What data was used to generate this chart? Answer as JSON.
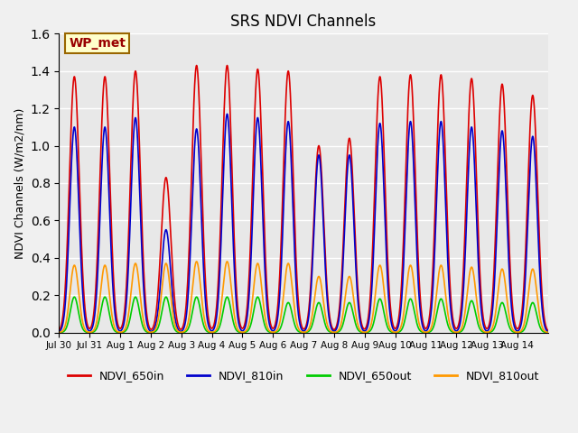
{
  "title": "SRS NDVI Channels",
  "ylabel": "NDVI Channels (W/m2/nm)",
  "annotation": "WP_met",
  "ylim": [
    0.0,
    1.6
  ],
  "background_color": "#e8e8e8",
  "fig_color": "#f0f0f0",
  "grid_color": "white",
  "series": {
    "NDVI_650in": {
      "color": "#dd0000"
    },
    "NDVI_810in": {
      "color": "#0000cc"
    },
    "NDVI_650out": {
      "color": "#00cc00"
    },
    "NDVI_810out": {
      "color": "#ff9900"
    }
  },
  "x_tick_labels": [
    "Jul 30",
    "Jul 31",
    "Aug 1",
    "Aug 2",
    "Aug 3",
    "Aug 4",
    "Aug 5",
    "Aug 6",
    "Aug 7",
    "Aug 8",
    "Aug 9",
    "Aug 10",
    "Aug 11",
    "Aug 12",
    "Aug 13",
    "Aug 14"
  ],
  "n_days": 16,
  "samples_per_day": 300,
  "day_peaks": {
    "650in": [
      1.37,
      1.37,
      1.4,
      0.83,
      1.43,
      1.43,
      1.41,
      1.4,
      1.0,
      1.04,
      1.37,
      1.38,
      1.38,
      1.36,
      1.33,
      1.27
    ],
    "810in": [
      1.1,
      1.1,
      1.15,
      0.55,
      1.09,
      1.17,
      1.15,
      1.13,
      0.95,
      0.95,
      1.12,
      1.13,
      1.13,
      1.1,
      1.08,
      1.05
    ],
    "650out": [
      0.19,
      0.19,
      0.19,
      0.19,
      0.19,
      0.19,
      0.19,
      0.16,
      0.16,
      0.16,
      0.18,
      0.18,
      0.18,
      0.17,
      0.16,
      0.16
    ],
    "810out": [
      0.36,
      0.36,
      0.37,
      0.37,
      0.38,
      0.38,
      0.37,
      0.37,
      0.3,
      0.3,
      0.36,
      0.36,
      0.36,
      0.35,
      0.34,
      0.34
    ]
  },
  "yticks": [
    0.0,
    0.2,
    0.4,
    0.6,
    0.8,
    1.0,
    1.2,
    1.4,
    1.6
  ]
}
